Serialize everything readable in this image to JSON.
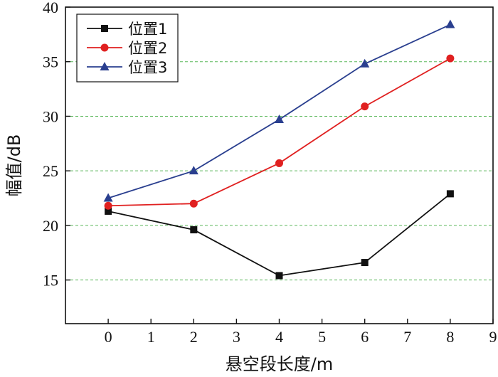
{
  "chart_data": {
    "type": "line",
    "xlabel": "悬空段长度/m",
    "ylabel": "幅值/dB",
    "xlim": [
      -1,
      9
    ],
    "ylim": [
      11,
      40
    ],
    "xticks": [
      0,
      1,
      2,
      3,
      4,
      5,
      6,
      7,
      8,
      9
    ],
    "yticks": [
      15,
      20,
      25,
      30,
      35,
      40
    ],
    "grid": {
      "y_values": [
        15,
        20,
        25,
        30,
        35
      ],
      "style": "dashed",
      "color": "#5cb85c"
    },
    "legend_position": "top-left",
    "x": [
      0,
      2,
      4,
      6,
      8
    ],
    "series": [
      {
        "name": "位置1",
        "values": [
          21.3,
          19.6,
          15.4,
          16.6,
          22.9
        ],
        "color": "#111111",
        "marker": "square"
      },
      {
        "name": "位置2",
        "values": [
          21.8,
          22.0,
          25.7,
          30.9,
          35.3
        ],
        "color": "#e02020",
        "marker": "circle"
      },
      {
        "name": "位置3",
        "values": [
          22.5,
          25.0,
          29.7,
          34.8,
          38.4
        ],
        "color": "#2a3f8f",
        "marker": "triangle"
      }
    ]
  }
}
